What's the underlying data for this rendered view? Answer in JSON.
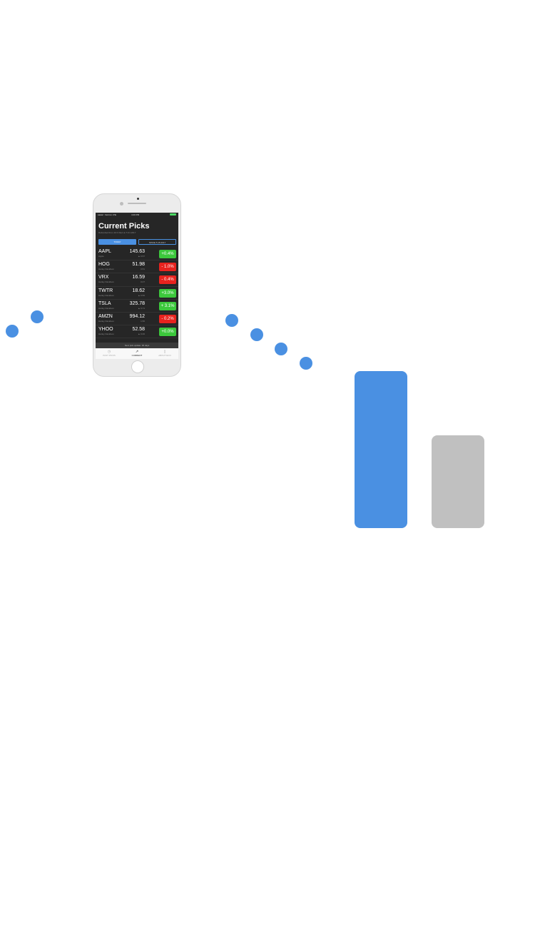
{
  "colors": {
    "accent": "#4a90e2",
    "bar_gray": "#c0c0c0",
    "positive": "#3cc83c",
    "negative": "#e8231e"
  },
  "status_bar": {
    "carrier": "●●●●○ Verizon  LTE",
    "time": "4:20 PM"
  },
  "app": {
    "title": "Current Picks",
    "subtitle": "Refreshed from 10 K filed on 5.31.2017",
    "segments": {
      "left": "TODAY",
      "right": "SINCE 5.15.2017"
    },
    "footer": "Next pick update: 36 days",
    "stocks": [
      {
        "symbol": "AAPL",
        "company": "Apple",
        "price": "145.63",
        "change": "▲ 0.57",
        "percent": "+0.4%",
        "direction": "up"
      },
      {
        "symbol": "HOG",
        "company": "Harley Davidson",
        "price": "51.98",
        "change": "0.51",
        "percent": "- 1.0%",
        "direction": "down"
      },
      {
        "symbol": "VRX",
        "company": "Harley Davidson",
        "price": "16.59",
        "change": "0.07",
        "percent": "- 0.4%",
        "direction": "down"
      },
      {
        "symbol": "TWTR",
        "company": "Harley Davidson",
        "price": "18.62",
        "change": "▲ 0.56",
        "percent": "+3.0%",
        "direction": "up"
      },
      {
        "symbol": "TSLA",
        "company": "Harley Davidson",
        "price": "325.78",
        "change": "▲ 9.71",
        "percent": "+ 3.1%",
        "direction": "up"
      },
      {
        "symbol": "AMZN",
        "company": "Harley Davidson",
        "price": "994.12",
        "change": "1.56",
        "percent": "- 0.2%",
        "direction": "down"
      },
      {
        "symbol": "YHOO",
        "company": "Harley Davidson",
        "price": "52.58",
        "change": "▲ 0.00",
        "percent": "+0.0%",
        "direction": "up"
      }
    ],
    "tabs": [
      {
        "label": "PAST PICKS",
        "icon": "clock-icon"
      },
      {
        "label": "CURRENT",
        "icon": "trend-up-icon"
      },
      {
        "label": "ABOUT ECO",
        "icon": "document-icon"
      }
    ]
  }
}
